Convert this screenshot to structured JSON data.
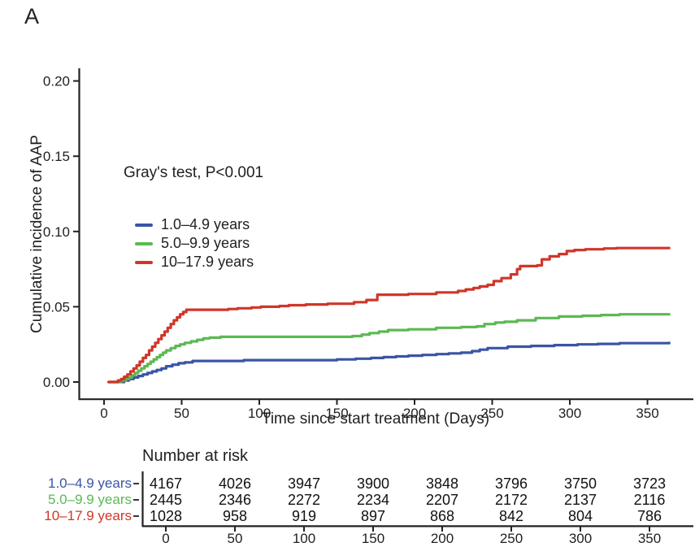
{
  "panel_label": "A",
  "colors": {
    "blue": "#3A55A4",
    "green": "#5CB952",
    "red": "#D0362A",
    "axis": "#222222",
    "text": "#1f1f1f"
  },
  "chart_data": {
    "type": "line",
    "subtype": "cumulative-incidence-step-curves",
    "title": "",
    "xlabel": "Time since start treatment (Days)",
    "ylabel": "Cumulative incidence of AAP",
    "annotation": "Gray's test, P<0.001",
    "grid": false,
    "legend_position": "upper-left-inside",
    "xlim": [
      0,
      370
    ],
    "ylim": [
      0,
      0.21
    ],
    "x_ticks": [
      0,
      50,
      100,
      150,
      200,
      250,
      300,
      350
    ],
    "y_ticks": [
      "0.00",
      "0.05",
      "0.10",
      "0.15",
      "0.20"
    ],
    "y_tick_values": [
      0,
      0.05,
      0.1,
      0.15,
      0.2
    ],
    "series": [
      {
        "name": "1.0–4.9 years",
        "color": "#3A55A4",
        "steps": [
          [
            3,
            0
          ],
          [
            13,
            0.001
          ],
          [
            16,
            0.002
          ],
          [
            19,
            0.003
          ],
          [
            22,
            0.004
          ],
          [
            25,
            0.005
          ],
          [
            28,
            0.006
          ],
          [
            31,
            0.007
          ],
          [
            34,
            0.008
          ],
          [
            37,
            0.009
          ],
          [
            40,
            0.0105
          ],
          [
            44,
            0.0115
          ],
          [
            48,
            0.0125
          ],
          [
            52,
            0.013
          ],
          [
            57,
            0.014
          ],
          [
            90,
            0.0145
          ],
          [
            150,
            0.015
          ],
          [
            162,
            0.0155
          ],
          [
            172,
            0.016
          ],
          [
            180,
            0.0165
          ],
          [
            188,
            0.017
          ],
          [
            196,
            0.0175
          ],
          [
            205,
            0.018
          ],
          [
            214,
            0.0185
          ],
          [
            222,
            0.019
          ],
          [
            230,
            0.0195
          ],
          [
            237,
            0.0205
          ],
          [
            242,
            0.0215
          ],
          [
            247,
            0.0225
          ],
          [
            260,
            0.0235
          ],
          [
            275,
            0.024
          ],
          [
            290,
            0.0245
          ],
          [
            305,
            0.025
          ],
          [
            318,
            0.0253
          ],
          [
            332,
            0.0258
          ],
          [
            364,
            0.026
          ]
        ]
      },
      {
        "name": "5.0–9.9 years",
        "color": "#5CB952",
        "steps": [
          [
            3,
            0
          ],
          [
            11,
            0.001
          ],
          [
            14,
            0.002
          ],
          [
            16,
            0.003
          ],
          [
            18,
            0.0045
          ],
          [
            20,
            0.006
          ],
          [
            22,
            0.0075
          ],
          [
            24,
            0.009
          ],
          [
            26,
            0.0105
          ],
          [
            28,
            0.012
          ],
          [
            30,
            0.0135
          ],
          [
            32,
            0.015
          ],
          [
            34,
            0.0165
          ],
          [
            36,
            0.018
          ],
          [
            38,
            0.0195
          ],
          [
            40,
            0.021
          ],
          [
            43,
            0.0225
          ],
          [
            46,
            0.024
          ],
          [
            49,
            0.025
          ],
          [
            52,
            0.026
          ],
          [
            56,
            0.027
          ],
          [
            60,
            0.028
          ],
          [
            64,
            0.029
          ],
          [
            68,
            0.0295
          ],
          [
            75,
            0.03
          ],
          [
            160,
            0.0305
          ],
          [
            166,
            0.0315
          ],
          [
            171,
            0.0325
          ],
          [
            177,
            0.0335
          ],
          [
            183,
            0.0345
          ],
          [
            196,
            0.035
          ],
          [
            214,
            0.036
          ],
          [
            230,
            0.0365
          ],
          [
            240,
            0.037
          ],
          [
            245,
            0.0385
          ],
          [
            252,
            0.0395
          ],
          [
            258,
            0.04
          ],
          [
            266,
            0.041
          ],
          [
            278,
            0.0425
          ],
          [
            293,
            0.0435
          ],
          [
            308,
            0.044
          ],
          [
            320,
            0.0445
          ],
          [
            332,
            0.045
          ],
          [
            364,
            0.045
          ]
        ]
      },
      {
        "name": "10–17.9 years",
        "color": "#D0362A",
        "steps": [
          [
            3,
            0
          ],
          [
            9,
            0.001
          ],
          [
            11,
            0.002
          ],
          [
            13,
            0.0035
          ],
          [
            15,
            0.005
          ],
          [
            17,
            0.007
          ],
          [
            19,
            0.009
          ],
          [
            21,
            0.011
          ],
          [
            23,
            0.0135
          ],
          [
            25,
            0.016
          ],
          [
            27,
            0.018
          ],
          [
            29,
            0.021
          ],
          [
            31,
            0.0235
          ],
          [
            33,
            0.026
          ],
          [
            35,
            0.0285
          ],
          [
            37,
            0.031
          ],
          [
            39,
            0.0335
          ],
          [
            41,
            0.036
          ],
          [
            43,
            0.0385
          ],
          [
            45,
            0.041
          ],
          [
            47,
            0.043
          ],
          [
            49,
            0.045
          ],
          [
            51,
            0.0465
          ],
          [
            53,
            0.048
          ],
          [
            80,
            0.0485
          ],
          [
            86,
            0.049
          ],
          [
            95,
            0.0495
          ],
          [
            101,
            0.05
          ],
          [
            113,
            0.0505
          ],
          [
            119,
            0.051
          ],
          [
            130,
            0.0515
          ],
          [
            144,
            0.052
          ],
          [
            161,
            0.053
          ],
          [
            169,
            0.0545
          ],
          [
            176,
            0.058
          ],
          [
            196,
            0.0585
          ],
          [
            214,
            0.0595
          ],
          [
            228,
            0.0605
          ],
          [
            233,
            0.0615
          ],
          [
            238,
            0.0625
          ],
          [
            242,
            0.0635
          ],
          [
            247,
            0.0645
          ],
          [
            251,
            0.067
          ],
          [
            256,
            0.069
          ],
          [
            262,
            0.0715
          ],
          [
            266,
            0.075
          ],
          [
            268,
            0.077
          ],
          [
            279,
            0.0775
          ],
          [
            282,
            0.0815
          ],
          [
            287,
            0.0835
          ],
          [
            293,
            0.085
          ],
          [
            298,
            0.087
          ],
          [
            303,
            0.0877
          ],
          [
            310,
            0.0882
          ],
          [
            322,
            0.0887
          ],
          [
            330,
            0.089
          ],
          [
            364,
            0.089
          ]
        ]
      }
    ]
  },
  "risk_table": {
    "title": "Number at risk",
    "time_points": [
      0,
      50,
      100,
      150,
      200,
      250,
      300,
      350
    ],
    "rows": [
      {
        "label": "1.0–4.9 years",
        "color": "#3A55A4",
        "values": [
          4167,
          4026,
          3947,
          3900,
          3848,
          3796,
          3750,
          3723
        ]
      },
      {
        "label": "5.0–9.9 years",
        "color": "#5CB952",
        "values": [
          2445,
          2346,
          2272,
          2234,
          2207,
          2172,
          2137,
          2116
        ]
      },
      {
        "label": "10–17.9 years",
        "color": "#D0362A",
        "values": [
          1028,
          958,
          919,
          897,
          868,
          842,
          804,
          786
        ]
      }
    ]
  }
}
